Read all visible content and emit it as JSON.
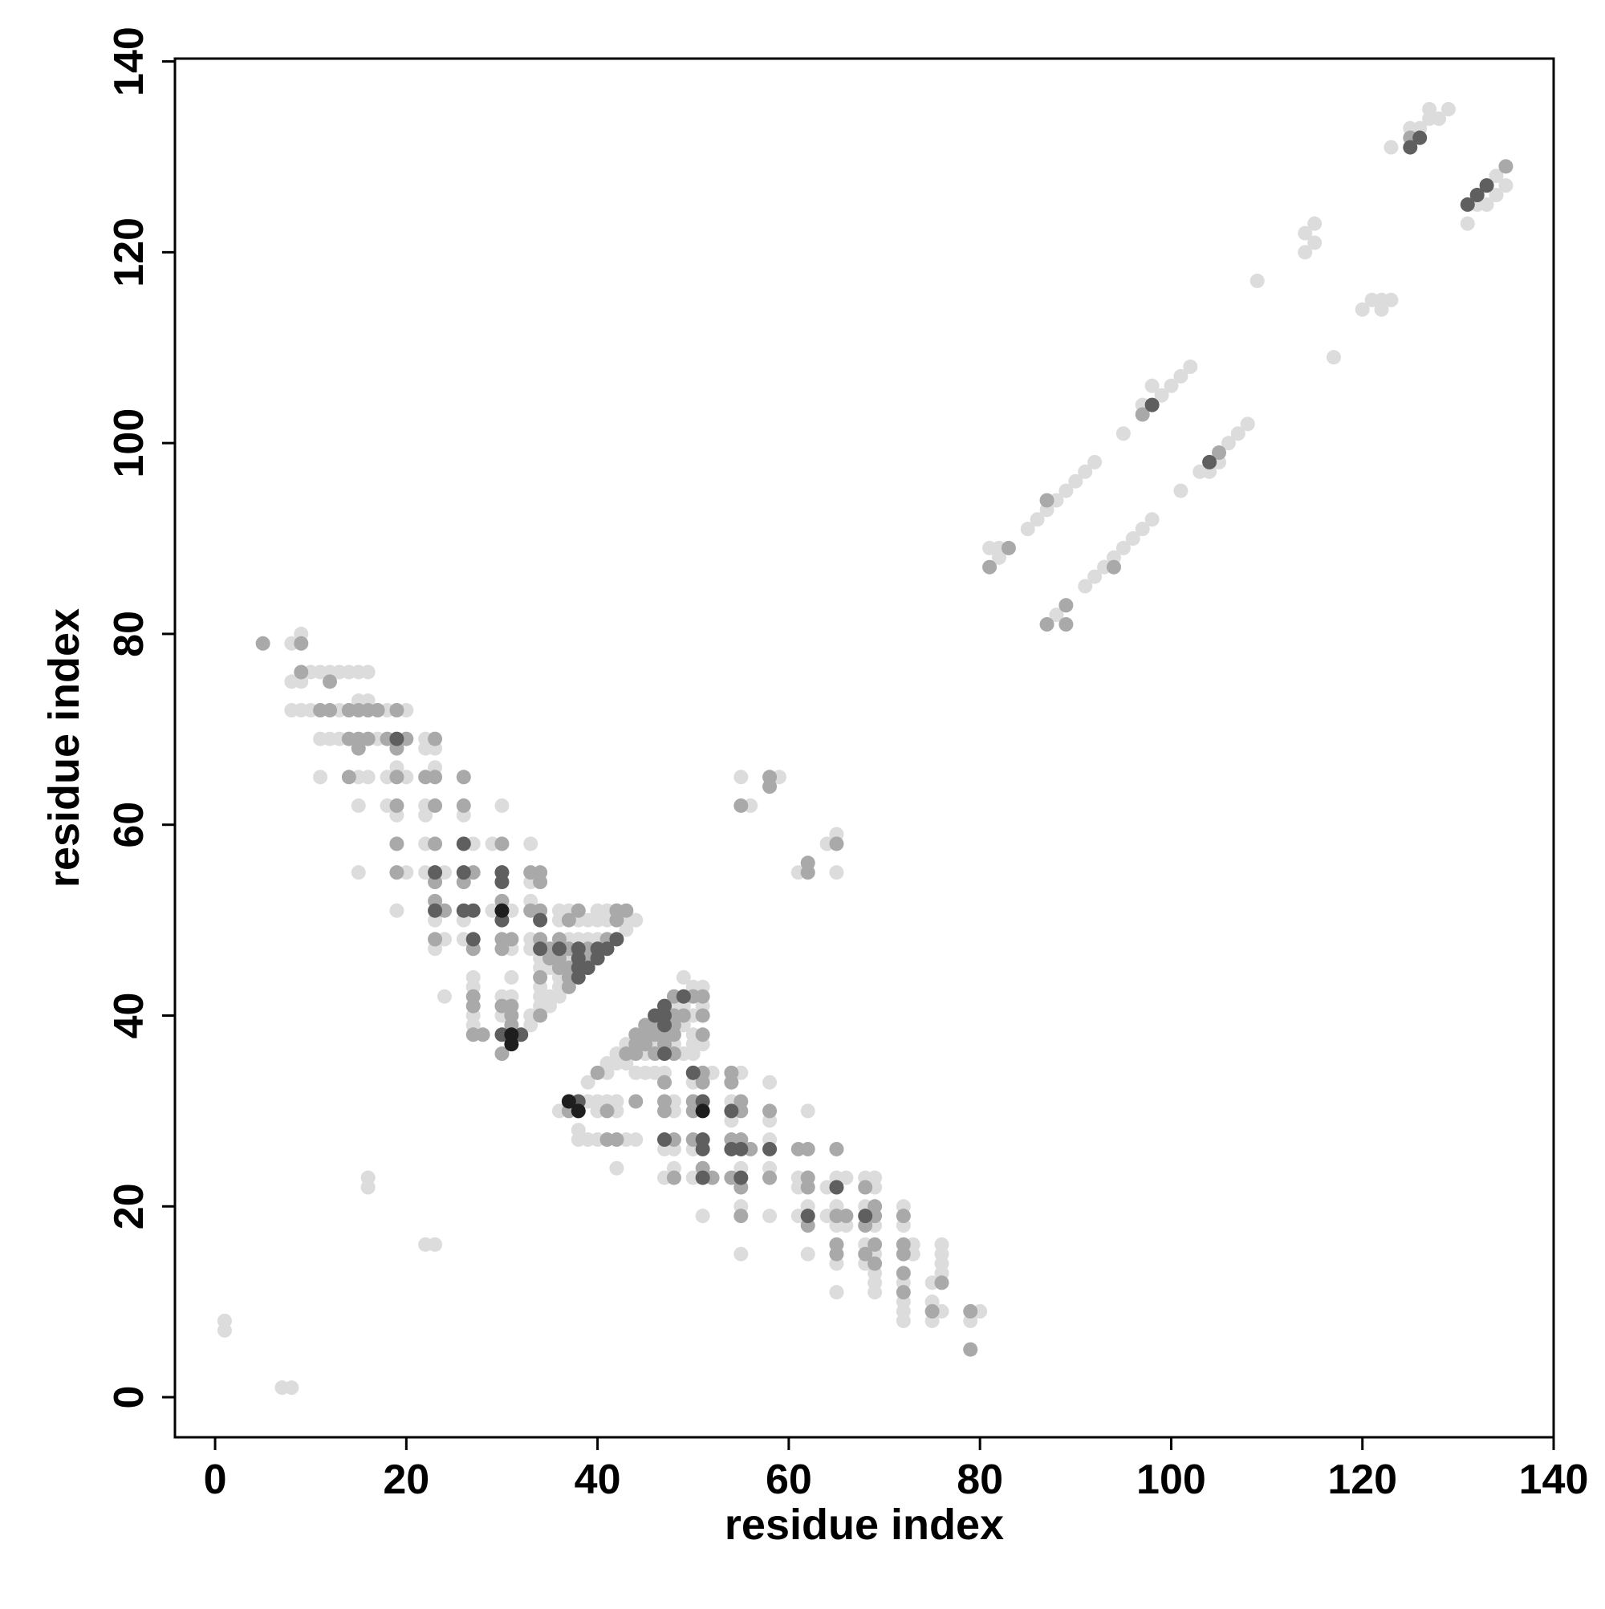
{
  "chart_data": {
    "type": "scatter",
    "x_label": "residue index",
    "y_label": "residue index",
    "xlim": [
      -4.2,
      140
    ],
    "ylim": [
      -4.2,
      140.3
    ],
    "xticks": [
      0,
      20,
      40,
      60,
      80,
      100,
      120,
      140
    ],
    "yticks": [
      0,
      20,
      40,
      60,
      80,
      100,
      120,
      140
    ],
    "series": [
      {
        "color": "#dcdcdc",
        "x": [
          8,
          9,
          8,
          9,
          10,
          11,
          12,
          13,
          14,
          15,
          16,
          8,
          9,
          10,
          13,
          18,
          20,
          15,
          16,
          11,
          12,
          13,
          17,
          22,
          22,
          23,
          11,
          15,
          16,
          18,
          20,
          19,
          23,
          15,
          18,
          22,
          30,
          19,
          22,
          26,
          22,
          27,
          29,
          33,
          15,
          20,
          22,
          24,
          33,
          19,
          29,
          31,
          36,
          37,
          40,
          41,
          33,
          23,
          26,
          36,
          38,
          39,
          40,
          41,
          43,
          44,
          24,
          26,
          33,
          37,
          38,
          39,
          40,
          43,
          23,
          31,
          33,
          34,
          37,
          34,
          35,
          27,
          31,
          36,
          36,
          27,
          34,
          24,
          30,
          31,
          34,
          35,
          36,
          34,
          35,
          27,
          30,
          33,
          27,
          33,
          49,
          50,
          51,
          48,
          49,
          51,
          50,
          49,
          50,
          43,
          46,
          48,
          50,
          51,
          42,
          45,
          49,
          50,
          41,
          42,
          43,
          44,
          45,
          46,
          47,
          41,
          52,
          55,
          39,
          50,
          58,
          39,
          40,
          41,
          42,
          48,
          54,
          36,
          40,
          42,
          48,
          62,
          38,
          58,
          54,
          38,
          39,
          40,
          43,
          44,
          58,
          47,
          48,
          50,
          42,
          48,
          55,
          58,
          47,
          50,
          61,
          65,
          66,
          68,
          69,
          61,
          64,
          69,
          55,
          62,
          65,
          68,
          72,
          51,
          58,
          61,
          64,
          65,
          66,
          69,
          72,
          68,
          73,
          76,
          55,
          62,
          69,
          73,
          76,
          65,
          68,
          76,
          69,
          76,
          75,
          72,
          69,
          65,
          69,
          75,
          72,
          76,
          72,
          80,
          72,
          75,
          79,
          126,
          127,
          127,
          128,
          129,
          125,
          123,
          134,
          132,
          133,
          134,
          135,
          131,
          114,
          115,
          114,
          115,
          109,
          120,
          121,
          122,
          123,
          122,
          117,
          81,
          82,
          82,
          85,
          86,
          87,
          88,
          89,
          90,
          91,
          92,
          95,
          97,
          98,
          99,
          100,
          101,
          102,
          88,
          91,
          92,
          93,
          94,
          95,
          96,
          97,
          98,
          101,
          103,
          104,
          106,
          107,
          108,
          105,
          55,
          56,
          59,
          61,
          64,
          65,
          65,
          1,
          1,
          7,
          8,
          16,
          16,
          22,
          23
        ],
        "values": [
          79,
          80,
          75,
          75,
          76,
          76,
          76,
          76,
          76,
          76,
          76,
          72,
          72,
          72,
          72,
          72,
          72,
          73,
          73,
          69,
          69,
          69,
          69,
          69,
          68,
          68,
          65,
          65,
          65,
          65,
          65,
          66,
          66,
          62,
          62,
          62,
          62,
          61,
          61,
          61,
          58,
          58,
          58,
          58,
          55,
          55,
          55,
          55,
          54,
          51,
          51,
          51,
          51,
          51,
          51,
          51,
          52,
          50,
          50,
          50,
          50,
          50,
          50,
          50,
          50,
          50,
          48,
          48,
          48,
          48,
          48,
          48,
          48,
          49,
          47,
          47,
          47,
          46,
          46,
          45,
          45,
          44,
          44,
          44,
          43,
          43,
          43,
          42,
          42,
          42,
          42,
          42,
          42,
          41,
          41,
          40,
          40,
          40,
          39,
          39,
          44,
          43,
          43,
          41,
          41,
          41,
          40,
          39,
          38,
          37,
          37,
          37,
          37,
          37,
          36,
          36,
          36,
          36,
          35,
          35,
          35,
          34,
          34,
          34,
          34,
          34,
          34,
          34,
          33,
          33,
          33,
          31,
          31,
          31,
          31,
          31,
          31,
          30,
          30,
          30,
          30,
          30,
          28,
          29,
          29,
          27,
          27,
          27,
          27,
          27,
          27,
          26,
          26,
          26,
          24,
          24,
          24,
          24,
          23,
          23,
          23,
          23,
          23,
          23,
          23,
          22,
          22,
          22,
          20,
          20,
          20,
          20,
          20,
          19,
          19,
          19,
          19,
          18,
          18,
          18,
          18,
          16,
          16,
          16,
          15,
          15,
          15,
          15,
          15,
          14,
          14,
          14,
          13,
          13,
          12,
          12,
          12,
          11,
          11,
          10,
          10,
          9,
          9,
          9,
          8,
          8,
          8,
          133,
          134,
          135,
          134,
          135,
          133,
          131,
          128,
          125,
          125,
          126,
          127,
          123,
          122,
          123,
          120,
          121,
          117,
          114,
          115,
          115,
          115,
          114,
          109,
          89,
          88,
          89,
          91,
          92,
          93,
          94,
          95,
          96,
          97,
          98,
          101,
          104,
          106,
          105,
          106,
          107,
          108,
          82,
          85,
          86,
          87,
          88,
          89,
          90,
          91,
          92,
          95,
          97,
          97,
          100,
          101,
          102,
          98,
          65,
          62,
          65,
          55,
          58,
          59,
          55,
          8,
          7,
          1,
          1,
          23,
          22,
          16,
          16
        ]
      },
      {
        "color": "#a9a9a9",
        "x": [
          9,
          9,
          12,
          11,
          12,
          14,
          15,
          16,
          17,
          19,
          14,
          15,
          16,
          18,
          20,
          23,
          15,
          19,
          14,
          19,
          22,
          23,
          26,
          19,
          23,
          26,
          19,
          23,
          30,
          19,
          27,
          33,
          34,
          23,
          26,
          34,
          24,
          33,
          34,
          38,
          42,
          43,
          23,
          30,
          37,
          42,
          23,
          30,
          31,
          34,
          36,
          41,
          27,
          30,
          35,
          37,
          39,
          35,
          36,
          39,
          36,
          37,
          34,
          37,
          37,
          27,
          27,
          30,
          31,
          31,
          34,
          31,
          27,
          28,
          30,
          48,
          50,
          51,
          48,
          49,
          51,
          45,
          46,
          48,
          44,
          45,
          46,
          47,
          48,
          51,
          44,
          45,
          47,
          43,
          44,
          46,
          48,
          40,
          51,
          54,
          47,
          51,
          54,
          44,
          47,
          50,
          55,
          37,
          41,
          47,
          50,
          55,
          58,
          41,
          42,
          48,
          50,
          54,
          55,
          56,
          61,
          62,
          65,
          51,
          48,
          52,
          54,
          58,
          62,
          55,
          62,
          68,
          69,
          55,
          65,
          66,
          69,
          72,
          62,
          68,
          65,
          69,
          72,
          65,
          68,
          72,
          69,
          72,
          76,
          72,
          75,
          79,
          79,
          125,
          135,
          81,
          83,
          87,
          97,
          87,
          89,
          89,
          94,
          105,
          55,
          58,
          58,
          62,
          62,
          65,
          5
        ],
        "values": [
          79,
          76,
          75,
          72,
          72,
          72,
          72,
          72,
          72,
          72,
          69,
          69,
          69,
          69,
          69,
          69,
          68,
          68,
          65,
          65,
          65,
          65,
          65,
          62,
          62,
          62,
          58,
          58,
          58,
          55,
          55,
          55,
          55,
          54,
          54,
          54,
          51,
          51,
          51,
          51,
          51,
          51,
          52,
          52,
          50,
          50,
          48,
          48,
          48,
          48,
          48,
          48,
          47,
          47,
          47,
          47,
          47,
          46,
          46,
          46,
          45,
          45,
          44,
          44,
          43,
          42,
          41,
          41,
          41,
          40,
          40,
          39,
          38,
          38,
          36,
          42,
          42,
          42,
          40,
          40,
          40,
          39,
          39,
          39,
          38,
          38,
          38,
          38,
          38,
          38,
          37,
          37,
          37,
          36,
          36,
          36,
          36,
          34,
          34,
          34,
          33,
          33,
          33,
          31,
          31,
          31,
          31,
          30,
          30,
          30,
          30,
          30,
          30,
          27,
          27,
          27,
          27,
          27,
          27,
          26,
          26,
          26,
          26,
          24,
          23,
          23,
          23,
          23,
          23,
          22,
          22,
          22,
          20,
          19,
          19,
          19,
          19,
          19,
          18,
          18,
          16,
          16,
          16,
          15,
          15,
          15,
          14,
          13,
          12,
          11,
          9,
          9,
          5,
          132,
          129,
          87,
          89,
          94,
          103,
          81,
          81,
          83,
          87,
          99,
          62,
          65,
          64,
          55,
          56,
          58,
          79
        ]
      },
      {
        "color": "#5f5f5f",
        "x": [
          19,
          26,
          23,
          26,
          30,
          30,
          23,
          26,
          27,
          30,
          34,
          27,
          42,
          34,
          36,
          38,
          40,
          41,
          38,
          40,
          38,
          39,
          38,
          30,
          32,
          49,
          47,
          46,
          47,
          47,
          47,
          50,
          38,
          51,
          54,
          47,
          51,
          51,
          54,
          55,
          58,
          51,
          55,
          65,
          62,
          68,
          125,
          126,
          131,
          132,
          133,
          98,
          104
        ],
        "values": [
          69,
          58,
          55,
          55,
          55,
          54,
          51,
          51,
          51,
          50,
          50,
          48,
          48,
          47,
          47,
          47,
          47,
          47,
          46,
          46,
          45,
          45,
          44,
          38,
          38,
          42,
          41,
          40,
          40,
          39,
          36,
          34,
          31,
          31,
          30,
          27,
          27,
          26,
          26,
          26,
          26,
          23,
          23,
          22,
          19,
          19,
          131,
          132,
          125,
          126,
          127,
          104,
          98
        ]
      },
      {
        "color": "#1e1e1e",
        "x": [
          30,
          31,
          31,
          37,
          38,
          51
        ],
        "values": [
          51,
          38,
          37,
          31,
          30,
          30
        ]
      }
    ]
  }
}
